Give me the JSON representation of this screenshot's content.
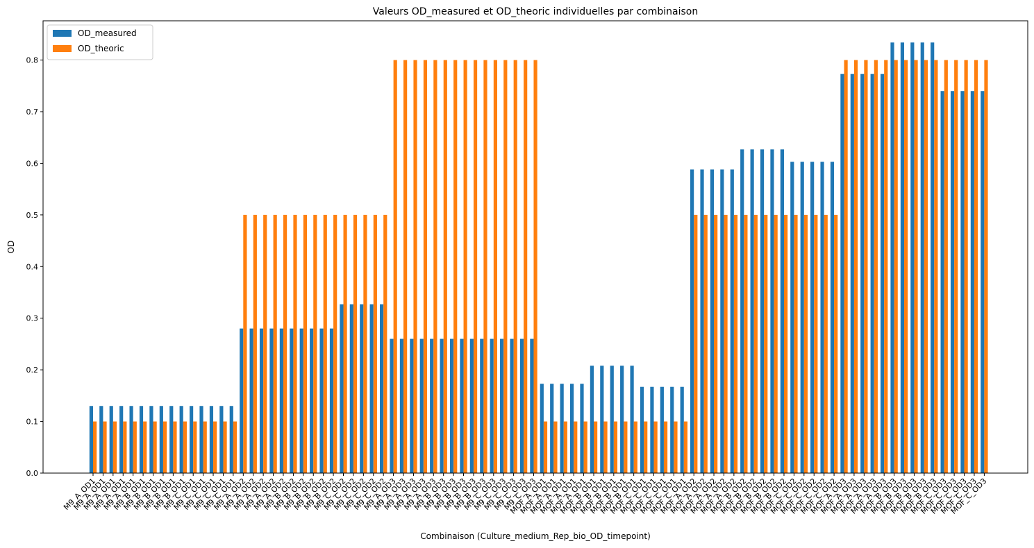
{
  "chart_data": {
    "type": "bar",
    "title": "Valeurs OD_measured et OD_theoric individuelles par combinaison",
    "x_label": "Combinaison (Culture_medium_Rep_bio_OD_timepoint)",
    "y_label": "OD",
    "categories": [
      "M9_A_OD1",
      "M9_A_OD1",
      "M9_A_OD1",
      "M9_A_OD1",
      "M9_A_OD1",
      "M9_B_OD1",
      "M9_B_OD1",
      "M9_B_OD1",
      "M9_B_OD1",
      "M9_B_OD1",
      "M9_C_OD1",
      "M9_C_OD1",
      "M9_C_OD1",
      "M9_C_OD1",
      "M9_C_OD1",
      "M9_A_OD2",
      "M9_A_OD2",
      "M9_A_OD2",
      "M9_A_OD2",
      "M9_A_OD2",
      "M9_B_OD2",
      "M9_B_OD2",
      "M9_B_OD2",
      "M9_B_OD2",
      "M9_B_OD2",
      "M9_C_OD2",
      "M9_C_OD2",
      "M9_C_OD2",
      "M9_C_OD2",
      "M9_C_OD2",
      "M9_A_OD3",
      "M9_A_OD3",
      "M9_A_OD3",
      "M9_A_OD3",
      "M9_A_OD3",
      "M9_B_OD3",
      "M9_B_OD3",
      "M9_B_OD3",
      "M9_B_OD3",
      "M9_B_OD3",
      "M9_C_OD3",
      "M9_C_OD3",
      "M9_C_OD3",
      "M9_C_OD3",
      "M9_C_OD3",
      "MOF_A_OD1",
      "MOF_A_OD1",
      "MOF_A_OD1",
      "MOF_A_OD1",
      "MOF_A_OD1",
      "MOF_B_OD1",
      "MOF_B_OD1",
      "MOF_B_OD1",
      "MOF_B_OD1",
      "MOF_B_OD1",
      "MOF_C_OD1",
      "MOF_C_OD1",
      "MOF_C_OD1",
      "MOF_C_OD1",
      "MOF_C_OD1",
      "MOF_A_OD2",
      "MOF_A_OD2",
      "MOF_A_OD2",
      "MOF_A_OD2",
      "MOF_A_OD2",
      "MOF_B_OD2",
      "MOF_B_OD2",
      "MOF_B_OD2",
      "MOF_B_OD2",
      "MOF_B_OD2",
      "MOF_C_OD2",
      "MOF_C_OD2",
      "MOF_C_OD2",
      "MOF_C_OD2",
      "MOF_C_OD2",
      "MOF_A_OD3",
      "MOF_A_OD3",
      "MOF_A_OD3",
      "MOF_A_OD3",
      "MOF_A_OD3",
      "MOF_B_OD3",
      "MOF_B_OD3",
      "MOF_B_OD3",
      "MOF_B_OD3",
      "MOF_B_OD3",
      "MOF_C_OD3",
      "MOF_C_OD3",
      "MOF_C_OD3",
      "MOF_C_OD3",
      "MOF_C_OD3"
    ],
    "series": [
      {
        "name": "OD_measured",
        "color": "#1f77b4",
        "values": [
          0.13,
          0.13,
          0.13,
          0.13,
          0.13,
          0.13,
          0.13,
          0.13,
          0.13,
          0.13,
          0.13,
          0.13,
          0.13,
          0.13,
          0.13,
          0.28,
          0.28,
          0.28,
          0.28,
          0.28,
          0.28,
          0.28,
          0.28,
          0.28,
          0.28,
          0.327,
          0.327,
          0.327,
          0.327,
          0.327,
          0.26,
          0.26,
          0.26,
          0.26,
          0.26,
          0.26,
          0.26,
          0.26,
          0.26,
          0.26,
          0.26,
          0.26,
          0.26,
          0.26,
          0.26,
          0.173,
          0.173,
          0.173,
          0.173,
          0.173,
          0.208,
          0.208,
          0.208,
          0.208,
          0.208,
          0.167,
          0.167,
          0.167,
          0.167,
          0.167,
          0.588,
          0.588,
          0.588,
          0.588,
          0.588,
          0.627,
          0.627,
          0.627,
          0.627,
          0.627,
          0.603,
          0.603,
          0.603,
          0.603,
          0.603,
          0.773,
          0.773,
          0.773,
          0.773,
          0.773,
          0.834,
          0.834,
          0.834,
          0.834,
          0.834,
          0.74,
          0.74,
          0.74,
          0.74,
          0.74
        ]
      },
      {
        "name": "OD_theoric",
        "color": "#ff7f0e",
        "values": [
          0.1,
          0.1,
          0.1,
          0.1,
          0.1,
          0.1,
          0.1,
          0.1,
          0.1,
          0.1,
          0.1,
          0.1,
          0.1,
          0.1,
          0.1,
          0.5,
          0.5,
          0.5,
          0.5,
          0.5,
          0.5,
          0.5,
          0.5,
          0.5,
          0.5,
          0.5,
          0.5,
          0.5,
          0.5,
          0.5,
          0.8,
          0.8,
          0.8,
          0.8,
          0.8,
          0.8,
          0.8,
          0.8,
          0.8,
          0.8,
          0.8,
          0.8,
          0.8,
          0.8,
          0.8,
          0.1,
          0.1,
          0.1,
          0.1,
          0.1,
          0.1,
          0.1,
          0.1,
          0.1,
          0.1,
          0.1,
          0.1,
          0.1,
          0.1,
          0.1,
          0.5,
          0.5,
          0.5,
          0.5,
          0.5,
          0.5,
          0.5,
          0.5,
          0.5,
          0.5,
          0.5,
          0.5,
          0.5,
          0.5,
          0.5,
          0.8,
          0.8,
          0.8,
          0.8,
          0.8,
          0.8,
          0.8,
          0.8,
          0.8,
          0.8,
          0.8,
          0.8,
          0.8,
          0.8,
          0.8
        ]
      }
    ],
    "ylim": [
      0,
      0.876
    ],
    "yticks": [
      {
        "value": 0,
        "label": "0.0"
      },
      0.1,
      0.2,
      0.3,
      0.4,
      0.5,
      0.6,
      0.7,
      0.8
    ],
    "legend": "upper left"
  }
}
